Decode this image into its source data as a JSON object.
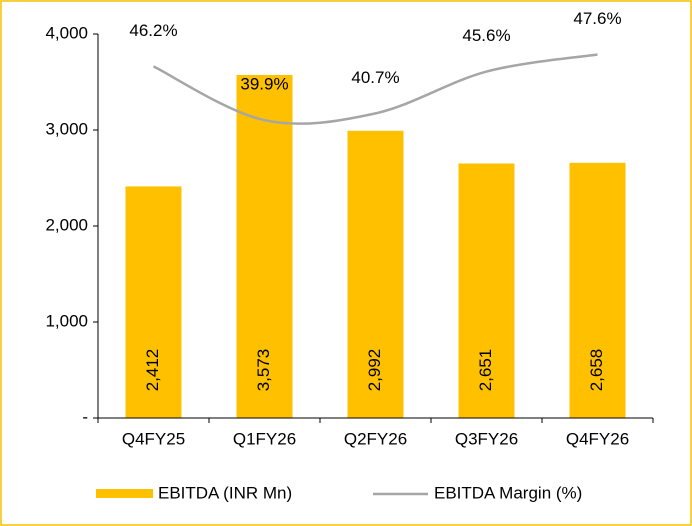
{
  "chart_data": {
    "type": "bar_line",
    "categories": [
      "Q4FY25",
      "Q1FY26",
      "Q2FY26",
      "Q3FY26",
      "Q4FY26"
    ],
    "series": [
      {
        "name": "EBITDA (INR Mn)",
        "type": "bar",
        "color": "#ffc000",
        "values": [
          2412,
          3573,
          2992,
          2651,
          2658
        ],
        "value_labels": [
          "2,412",
          "3,573",
          "2,992",
          "2,651",
          "2,658"
        ]
      },
      {
        "name": "EBITDA Margin (%)",
        "type": "line",
        "axis": "y2",
        "color": "#a6a6a6",
        "values": [
          46.2,
          39.9,
          40.7,
          45.6,
          47.6
        ],
        "value_labels": [
          "46.2%",
          "39.9%",
          "40.7%",
          "45.6%",
          "47.6%"
        ]
      }
    ],
    "ylim": [
      0,
      4000
    ],
    "yticks": [
      {
        "value": 0,
        "label": "-"
      },
      {
        "value": 1000,
        "label": "1,000"
      },
      {
        "value": 2000,
        "label": "2,000"
      },
      {
        "value": 3000,
        "label": "3,000"
      },
      {
        "value": 4000,
        "label": "4,000"
      }
    ],
    "y2lim": [
      5,
      50
    ],
    "legend": "bottom"
  }
}
